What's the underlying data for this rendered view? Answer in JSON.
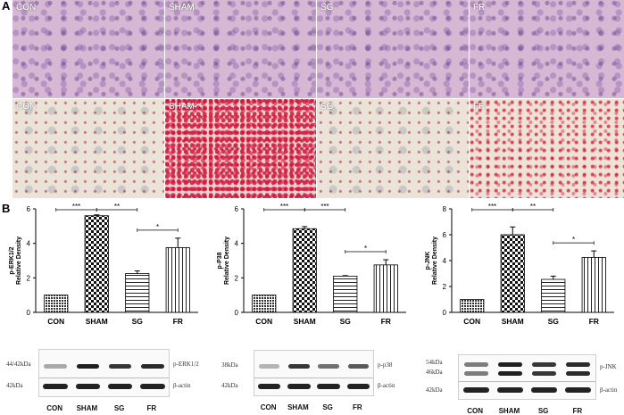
{
  "panel_a": {
    "letter": "A",
    "top_row": [
      {
        "label": "CON",
        "stain": "he"
      },
      {
        "label": "SHAM",
        "stain": "he"
      },
      {
        "label": "SG",
        "stain": "he"
      },
      {
        "label": "FR",
        "stain": "he"
      }
    ],
    "bottom_row": [
      {
        "label": "CON",
        "stain": "oil-red"
      },
      {
        "label": "SHAM",
        "stain": "oil-red-heavy"
      },
      {
        "label": "SG",
        "stain": "oil-red-light"
      },
      {
        "label": "FR",
        "stain": "oil-red-medium"
      }
    ]
  },
  "panel_b": {
    "letter": "B"
  },
  "chart_data": [
    {
      "type": "bar",
      "categories": [
        "CON",
        "SHAM",
        "SG",
        "FR"
      ],
      "values": [
        1.0,
        5.6,
        2.25,
        3.75
      ],
      "errors": [
        0.0,
        0.05,
        0.15,
        0.55
      ],
      "ylabel_line1": "p-ERK1/2",
      "ylabel_line2": "Relative Density",
      "ylim": [
        0,
        6
      ],
      "yticks": [
        "0",
        "2",
        "4",
        "6"
      ],
      "significance": [
        {
          "from": 0,
          "to": 1,
          "label": "***"
        },
        {
          "from": 1,
          "to": 2,
          "label": "**"
        },
        {
          "from": 2,
          "to": 3,
          "label": "*"
        }
      ]
    },
    {
      "type": "bar",
      "categories": [
        "CON",
        "SHAM",
        "SG",
        "FR"
      ],
      "values": [
        1.0,
        4.85,
        2.1,
        2.75
      ],
      "errors": [
        0.0,
        0.12,
        0.03,
        0.3
      ],
      "ylabel_line1": "p-P38",
      "ylabel_line2": "Relative Density",
      "ylim": [
        0,
        6
      ],
      "yticks": [
        "0",
        "2",
        "4",
        "6"
      ],
      "significance": [
        {
          "from": 0,
          "to": 1,
          "label": "***"
        },
        {
          "from": 1,
          "to": 2,
          "label": "***"
        },
        {
          "from": 2,
          "to": 3,
          "label": "*"
        }
      ]
    },
    {
      "type": "bar",
      "categories": [
        "CON",
        "SHAM",
        "SG",
        "FR"
      ],
      "values": [
        1.0,
        6.0,
        2.55,
        4.25
      ],
      "errors": [
        0.0,
        0.6,
        0.25,
        0.5
      ],
      "ylabel_line1": "p-JNK",
      "ylabel_line2": "Relative Density",
      "ylim": [
        0,
        8
      ],
      "yticks": [
        "0",
        "2",
        "4",
        "6",
        "8"
      ],
      "significance": [
        {
          "from": 0,
          "to": 1,
          "label": "***"
        },
        {
          "from": 1,
          "to": 2,
          "label": "**"
        },
        {
          "from": 2,
          "to": 3,
          "label": "*"
        }
      ]
    }
  ],
  "blots": [
    {
      "left_labels": [
        "44/42kDa",
        "42kDa"
      ],
      "right_labels": [
        "p-ERK1/2",
        "β-actin"
      ],
      "lanes": [
        "CON",
        "SHAM",
        "SG",
        "FR"
      ]
    },
    {
      "left_labels": [
        "38kDa",
        "42kDa"
      ],
      "right_labels": [
        "p-p38",
        "β-actin"
      ],
      "lanes": [
        "CON",
        "SHAM",
        "SG",
        "FR"
      ]
    },
    {
      "left_labels": [
        "54kDa",
        "46kDa",
        "42kDa"
      ],
      "right_labels": [
        "p-JNK",
        "β-actin"
      ],
      "lanes": [
        "CON",
        "SHAM",
        "SG",
        "FR"
      ]
    }
  ]
}
